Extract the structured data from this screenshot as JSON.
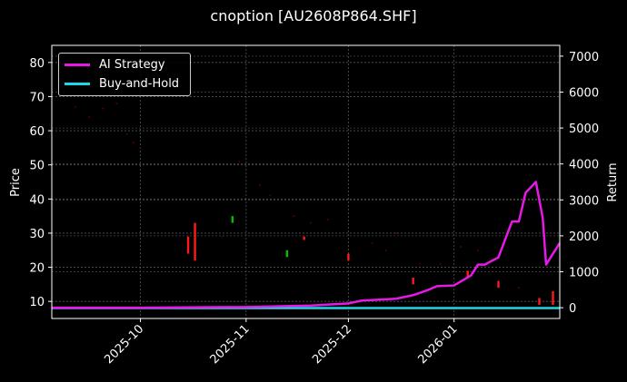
{
  "title": "cnoption [AU2608P864.SHF]",
  "chart_data": {
    "type": "line",
    "title": "cnoption [AU2608P864.SHF]",
    "xlabel": "",
    "ylabel_left": "Price",
    "ylabel_right": "Return",
    "x_ticks": [
      "2025-10",
      "2025-11",
      "2025-12",
      "2026-01"
    ],
    "y_left_ticks": [
      10,
      20,
      30,
      40,
      50,
      60,
      70,
      80
    ],
    "y_left_lim": [
      5,
      85
    ],
    "y_right_ticks": [
      0,
      1000,
      2000,
      3000,
      4000,
      5000,
      6000,
      7000
    ],
    "y_right_lim": [
      -300,
      7300
    ],
    "grid": true,
    "legend_position": "upper left",
    "legend": [
      "AI Strategy",
      "Buy-and-Hold"
    ],
    "series": [
      {
        "name": "AI Strategy",
        "color": "#e619e6",
        "axis": "right",
        "x": [
          "2025-09-05",
          "2025-10-01",
          "2025-11-01",
          "2025-11-20",
          "2025-12-01",
          "2025-12-05",
          "2025-12-15",
          "2025-12-20",
          "2025-12-24",
          "2025-12-27",
          "2026-01-01",
          "2026-01-06",
          "2026-01-08",
          "2026-01-10",
          "2026-01-14",
          "2026-01-16",
          "2026-01-18",
          "2026-01-20",
          "2026-01-22",
          "2026-01-24",
          "2026-01-25",
          "2026-01-27",
          "2026-01-28",
          "2026-01-30",
          "2026-02-01"
        ],
        "values": [
          0,
          0,
          20,
          60,
          120,
          200,
          250,
          350,
          480,
          600,
          620,
          900,
          1200,
          1200,
          1400,
          1900,
          2400,
          2400,
          3200,
          3400,
          3500,
          2500,
          1200,
          1500,
          1800
        ]
      },
      {
        "name": "Buy-and-Hold",
        "color": "#1ad9e6",
        "axis": "right",
        "x": [
          "2025-09-05",
          "2026-02-01"
        ],
        "values": [
          -10,
          -10
        ]
      },
      {
        "name": "Price candles",
        "axis": "left",
        "up_color": "#00c000",
        "down_color": "#ff1a1a",
        "candles": [
          {
            "x": "2025-10-15",
            "low": 24,
            "high": 29,
            "color": "#ff1a1a"
          },
          {
            "x": "2025-10-17",
            "low": 22,
            "high": 33,
            "color": "#ff1a1a"
          },
          {
            "x": "2025-10-28",
            "low": 33,
            "high": 35,
            "color": "#00c000"
          },
          {
            "x": "2025-11-13",
            "low": 23,
            "high": 25,
            "color": "#00c000"
          },
          {
            "x": "2025-11-18",
            "low": 28,
            "high": 29,
            "color": "#ff1a1a"
          },
          {
            "x": "2025-12-01",
            "low": 22,
            "high": 24,
            "color": "#ff1a1a"
          },
          {
            "x": "2025-12-20",
            "low": 15,
            "high": 17,
            "color": "#ff1a1a"
          },
          {
            "x": "2026-01-05",
            "low": 17,
            "high": 19,
            "color": "#ff1a1a"
          },
          {
            "x": "2026-01-14",
            "low": 14,
            "high": 16,
            "color": "#ff1a1a"
          },
          {
            "x": "2026-01-26",
            "low": 9,
            "high": 11,
            "color": "#ff1a1a"
          },
          {
            "x": "2026-01-30",
            "low": 9,
            "high": 13,
            "color": "#ff1a1a"
          }
        ]
      }
    ]
  }
}
